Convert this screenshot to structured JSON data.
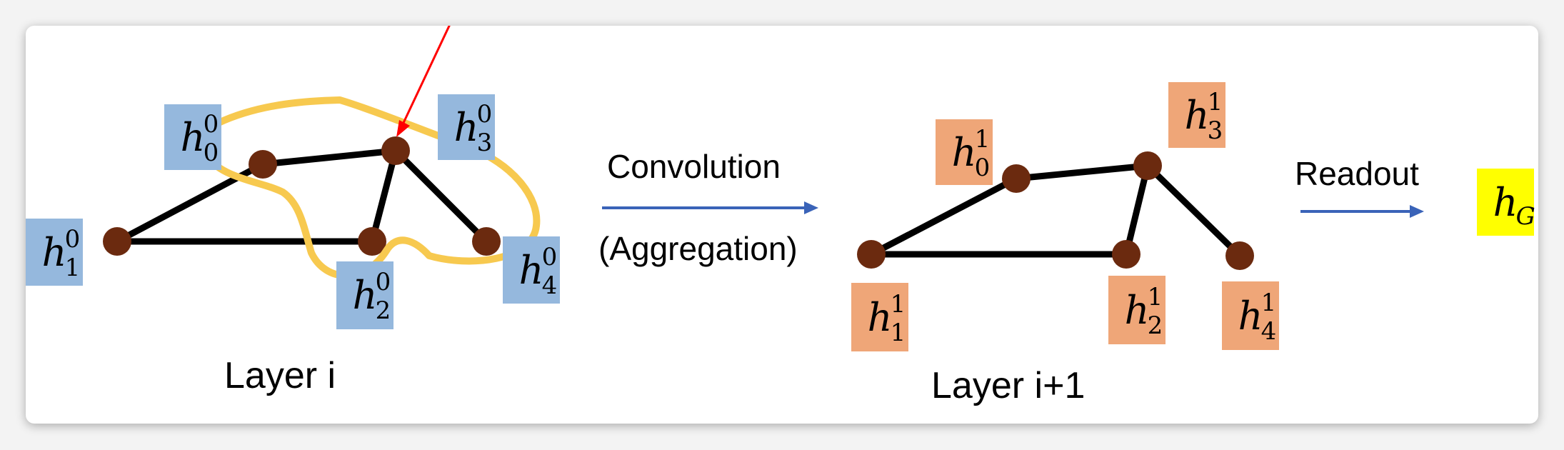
{
  "colors": {
    "background": "#f3f3f3",
    "card": "#ffffff",
    "node": "#6b2a0f",
    "edge": "#000000",
    "layer_i_label_bg": "#95b8dd",
    "layer_i1_label_bg": "#efa678",
    "readout_label_bg": "#ffff00",
    "arrow": "#3a63b8",
    "highlight_loop": "#f7c94f",
    "pointer_arrow": "#ff0000"
  },
  "layer_i": {
    "caption": "Layer i",
    "nodes": [
      {
        "id": "h0",
        "base": "h",
        "sup": "0",
        "sub": "0"
      },
      {
        "id": "h1",
        "base": "h",
        "sup": "0",
        "sub": "1"
      },
      {
        "id": "h2",
        "base": "h",
        "sup": "0",
        "sub": "2"
      },
      {
        "id": "h3",
        "base": "h",
        "sup": "0",
        "sub": "3"
      },
      {
        "id": "h4",
        "base": "h",
        "sup": "0",
        "sub": "4"
      }
    ],
    "edges": [
      [
        "h1",
        "h0"
      ],
      [
        "h0",
        "h3"
      ],
      [
        "h1",
        "h2"
      ],
      [
        "h2",
        "h3"
      ],
      [
        "h3",
        "h4"
      ]
    ]
  },
  "layer_i1": {
    "caption": "Layer i+1",
    "nodes": [
      {
        "id": "h0",
        "base": "h",
        "sup": "1",
        "sub": "0"
      },
      {
        "id": "h1",
        "base": "h",
        "sup": "1",
        "sub": "1"
      },
      {
        "id": "h2",
        "base": "h",
        "sup": "1",
        "sub": "2"
      },
      {
        "id": "h3",
        "base": "h",
        "sup": "1",
        "sub": "3"
      },
      {
        "id": "h4",
        "base": "h",
        "sup": "1",
        "sub": "4"
      }
    ],
    "edges": [
      [
        "h1",
        "h0"
      ],
      [
        "h0",
        "h3"
      ],
      [
        "h1",
        "h2"
      ],
      [
        "h2",
        "h3"
      ],
      [
        "h3",
        "h4"
      ]
    ]
  },
  "convolution": {
    "label": "Convolution",
    "sublabel": "(Aggregation)"
  },
  "readout": {
    "label": "Readout"
  },
  "graph_embedding": {
    "base": "h",
    "sub": "G"
  }
}
